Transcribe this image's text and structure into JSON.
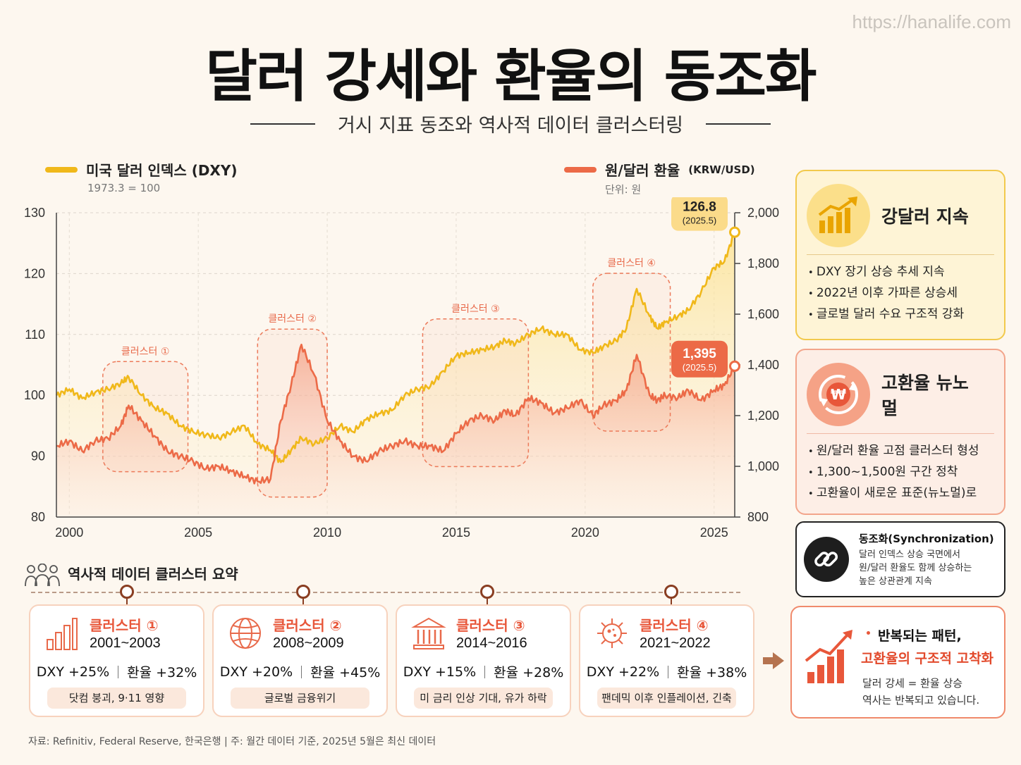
{
  "watermark": "https://hanalife.com",
  "title": "달러 강세와 환율의 동조화",
  "subtitle": "거시 지표 동조와 역사적 데이터 클러스터링",
  "colors": {
    "dxy": "#f0b81a",
    "krw": "#ec6a47",
    "background": "#fdf7ef"
  },
  "legend": {
    "dxy_name": "미국 달러 인덱스 (DXY)",
    "dxy_sub": "1973.3 = 100",
    "krw_name": "원/달러 환율",
    "krw_unit": "(KRW/USD)",
    "krw_sub": "단위: 원"
  },
  "chart_data": {
    "type": "line",
    "x_ticks": [
      "2000",
      "2005",
      "2010",
      "2015",
      "2020",
      "2025"
    ],
    "y_left_ticks": [
      "130",
      "120",
      "110",
      "100",
      "90",
      "80"
    ],
    "y_right_ticks": [
      "2,000",
      "1,800",
      "1,600",
      "1,400",
      "1,200",
      "1,000",
      "800"
    ],
    "ylim_left": [
      80,
      130
    ],
    "ylim_right": [
      800,
      2000
    ],
    "xlim": [
      1999.5,
      2025.8
    ],
    "grid": true,
    "series": [
      {
        "name": "미국 달러 인덱스 (DXY)",
        "axis": "left",
        "x": [
          1999.5,
          2000.0,
          2000.5,
          2001.0,
          2001.5,
          2002.0,
          2002.3,
          2002.8,
          2003.3,
          2003.8,
          2004.3,
          2004.8,
          2005.3,
          2005.8,
          2006.3,
          2006.8,
          2007.3,
          2007.8,
          2008.2,
          2008.6,
          2009.0,
          2009.5,
          2010.0,
          2010.5,
          2011.0,
          2011.5,
          2012.0,
          2012.5,
          2013.0,
          2013.5,
          2014.0,
          2014.5,
          2015.0,
          2015.5,
          2016.0,
          2016.5,
          2016.9,
          2017.3,
          2017.8,
          2018.3,
          2018.8,
          2019.3,
          2019.8,
          2020.3,
          2020.7,
          2021.2,
          2021.6,
          2022.0,
          2022.5,
          2022.8,
          2023.1,
          2023.6,
          2024.0,
          2024.5,
          2025.0,
          2025.4,
          2025.8
        ],
        "values": [
          100,
          101,
          99.5,
          100.5,
          101,
          102,
          103,
          100,
          98,
          97,
          95,
          94,
          93.5,
          93,
          94,
          95,
          92,
          91,
          89,
          91,
          93,
          92,
          93,
          95,
          94,
          96,
          97,
          97.5,
          100,
          101,
          101.5,
          104,
          106.5,
          107,
          107.5,
          108,
          109,
          108.5,
          110,
          111,
          110,
          110,
          107.5,
          107,
          108,
          109,
          111,
          117.5,
          113,
          111,
          112,
          113,
          114,
          117,
          121,
          122,
          126.8
        ]
      },
      {
        "name": "원/달러 환율",
        "axis": "right",
        "x": [
          1999.5,
          2000.0,
          2000.5,
          2001.0,
          2001.5,
          2002.0,
          2002.3,
          2002.8,
          2003.3,
          2003.8,
          2004.3,
          2004.8,
          2005.3,
          2005.8,
          2006.3,
          2006.8,
          2007.3,
          2007.8,
          2008.2,
          2008.6,
          2009.0,
          2009.5,
          2010.0,
          2010.5,
          2011.0,
          2011.5,
          2012.0,
          2012.5,
          2013.0,
          2013.5,
          2014.0,
          2014.5,
          2015.0,
          2015.5,
          2016.0,
          2016.5,
          2016.9,
          2017.3,
          2017.8,
          2018.3,
          2018.8,
          2019.3,
          2019.8,
          2020.3,
          2020.7,
          2021.2,
          2021.6,
          2022.0,
          2022.5,
          2022.8,
          2023.1,
          2023.6,
          2024.0,
          2024.5,
          2025.0,
          2025.4,
          2025.8
        ],
        "values": [
          1080,
          1100,
          1060,
          1100,
          1110,
          1160,
          1240,
          1180,
          1120,
          1060,
          1040,
          1020,
          990,
          1000,
          980,
          960,
          940,
          950,
          1180,
          1320,
          1480,
          1360,
          1180,
          1100,
          1040,
          1020,
          1060,
          1080,
          1100,
          1080,
          1080,
          1060,
          1130,
          1180,
          1200,
          1180,
          1220,
          1200,
          1270,
          1250,
          1210,
          1230,
          1260,
          1200,
          1240,
          1260,
          1300,
          1440,
          1280,
          1260,
          1280,
          1270,
          1300,
          1260,
          1300,
          1320,
          1395
        ]
      }
    ],
    "clusters": [
      {
        "label": "클러스터 ①",
        "x_range": [
          2001.3,
          2004.6
        ]
      },
      {
        "label": "클러스터 ②",
        "x_range": [
          2007.3,
          2010.0
        ]
      },
      {
        "label": "클러스터 ③",
        "x_range": [
          2013.7,
          2017.8
        ]
      },
      {
        "label": "클러스터 ④",
        "x_range": [
          2020.3,
          2023.3
        ]
      }
    ],
    "callouts": [
      {
        "series": "dxy",
        "value": "126.8",
        "date": "(2025.5)"
      },
      {
        "series": "krw",
        "value": "1,395",
        "date": "(2025.5)"
      }
    ]
  },
  "cards": {
    "strong_dollar": {
      "title": "강달러 지속",
      "items": [
        "DXY 장기 상승 추세 지속",
        "2022년 이후 가파른 상승세",
        "글로벌 달러 수요 구조적 강화"
      ]
    },
    "high_fx": {
      "title": "고환율 뉴노멀",
      "items": [
        "원/달러 환율 고점 클러스터 형성",
        "1,300~1,500원 구간 정착",
        "고환율이 새로운 표준(뉴노멀)로"
      ]
    },
    "sync": {
      "title": "동조화(Synchronization)",
      "text_lines": [
        "달러 인덱스 상승 국면에서",
        "원/달러 환율도 함께 상승하는",
        "높은 상관관계 지속"
      ]
    },
    "pattern": {
      "title1": "반복되는 패턴,",
      "title2": "고환율의 구조적 고착화",
      "text_lines": [
        "달러 강세 = 환율 상승",
        "역사는 반복되고 있습니다."
      ]
    }
  },
  "summary": {
    "title": "역사적 데이터 클러스터 요약",
    "clusters": [
      {
        "name": "클러스터 ①",
        "years": "2001~2003",
        "dxy": "DXY +25%",
        "krw": "환율 +32%",
        "note": "닷컴 붕괴, 9·11 영향",
        "icon": "bar-chart-icon"
      },
      {
        "name": "클러스터 ②",
        "years": "2008~2009",
        "dxy": "DXY +20%",
        "krw": "환율 +45%",
        "note": "글로벌 금융위기",
        "icon": "globe-icon"
      },
      {
        "name": "클러스터 ③",
        "years": "2014~2016",
        "dxy": "DXY +15%",
        "krw": "환율 +28%",
        "note": "미 금리 인상 기대, 유가 하락",
        "icon": "bank-icon"
      },
      {
        "name": "클러스터 ④",
        "years": "2021~2022",
        "dxy": "DXY +22%",
        "krw": "환율 +38%",
        "note": "팬데믹 이후 인플레이션, 긴축",
        "icon": "virus-icon"
      }
    ]
  },
  "footer": "자료: Refinitiv, Federal Reserve, 한국은행   |   주: 월간 데이터 기준, 2025년 5월은 최신 데이터"
}
